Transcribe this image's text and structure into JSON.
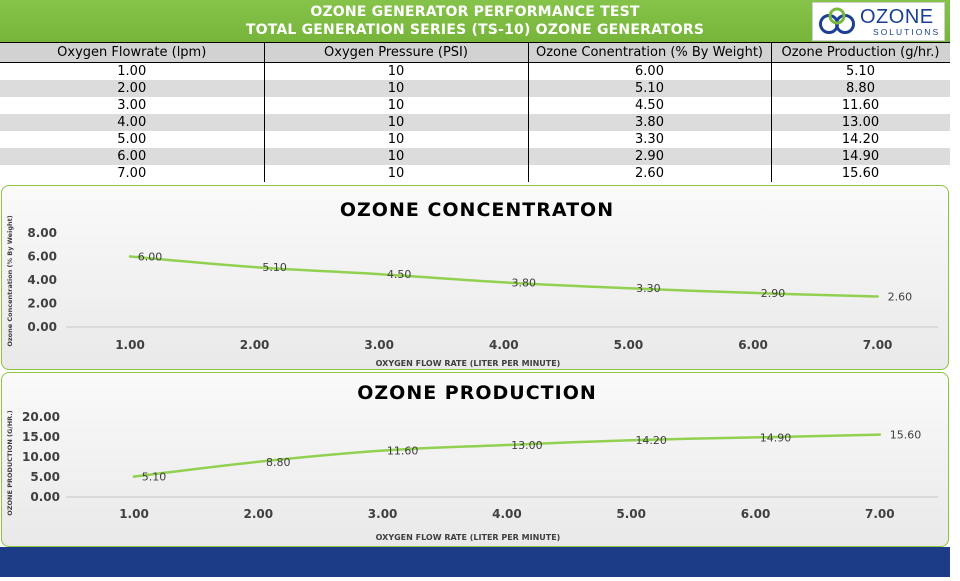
{
  "header": {
    "title_line1": "OZONE GENERATOR PERFORMANCE TEST",
    "title_line2": "TOTAL GENERATION SERIES (TS-10) OZONE GENERATORS",
    "logo_word": "OZONE",
    "logo_sub": "SOLUTIONS"
  },
  "table": {
    "columns": [
      "Oxygen Flowrate (lpm)",
      "Oxygen Pressure (PSI)",
      "Ozone Conentration (% By Weight)",
      "Ozone Production (g/hr.)"
    ],
    "rows": [
      [
        "1.00",
        "10",
        "6.00",
        "5.10"
      ],
      [
        "2.00",
        "10",
        "5.10",
        "8.80"
      ],
      [
        "3.00",
        "10",
        "4.50",
        "11.60"
      ],
      [
        "4.00",
        "10",
        "3.80",
        "13.00"
      ],
      [
        "5.00",
        "10",
        "3.30",
        "14.20"
      ],
      [
        "6.00",
        "10",
        "2.90",
        "14.90"
      ],
      [
        "7.00",
        "10",
        "2.60",
        "15.60"
      ]
    ]
  },
  "colors": {
    "header_green": "#7ab93f",
    "line_green": "#92d050",
    "footer_navy": "#1d3c88",
    "logo_blue": "#1b3f93"
  },
  "chart_data": [
    {
      "type": "line",
      "title": "OZONE CONCENTRATON",
      "xlabel": "OXYGEN FLOW RATE (LITER PER MINUTE)",
      "ylabel": "Ozone Concentration (% By Weight)",
      "x": [
        1,
        2,
        3,
        4,
        5,
        6,
        7
      ],
      "x_tick_labels": [
        "1.00",
        "2.00",
        "3.00",
        "4.00",
        "5.00",
        "6.00",
        "7.00"
      ],
      "y_tick_labels": [
        "0.00",
        "2.00",
        "4.00",
        "6.00",
        "8.00"
      ],
      "ylim": [
        0,
        8
      ],
      "series": [
        {
          "values": [
            6.0,
            5.1,
            4.5,
            3.8,
            3.3,
            2.9,
            2.6
          ],
          "labels": [
            "6.00",
            "5.10",
            "4.50",
            "3.80",
            "3.30",
            "2.90",
            "2.60"
          ]
        }
      ],
      "grid": false,
      "legend": "none"
    },
    {
      "type": "line",
      "title": "OZONE PRODUCTION",
      "xlabel": "OXYGEN FLOW RATE (LITER PER MINUTE)",
      "ylabel": "OZONE PRODUCTION (G/HR.)",
      "x": [
        1,
        2,
        3,
        4,
        5,
        6,
        7
      ],
      "x_tick_labels": [
        "1.00",
        "2.00",
        "3.00",
        "4.00",
        "5.00",
        "6.00",
        "7.00"
      ],
      "y_tick_labels": [
        "0.00",
        "5.00",
        "10.00",
        "15.00",
        "20.00"
      ],
      "ylim": [
        0,
        20
      ],
      "series": [
        {
          "values": [
            5.1,
            8.8,
            11.6,
            13.0,
            14.2,
            14.9,
            15.6
          ],
          "labels": [
            "5.10",
            "8.80",
            "11.60",
            "13.00",
            "14.20",
            "14.90",
            "15.60"
          ]
        }
      ],
      "grid": false,
      "legend": "none"
    }
  ]
}
